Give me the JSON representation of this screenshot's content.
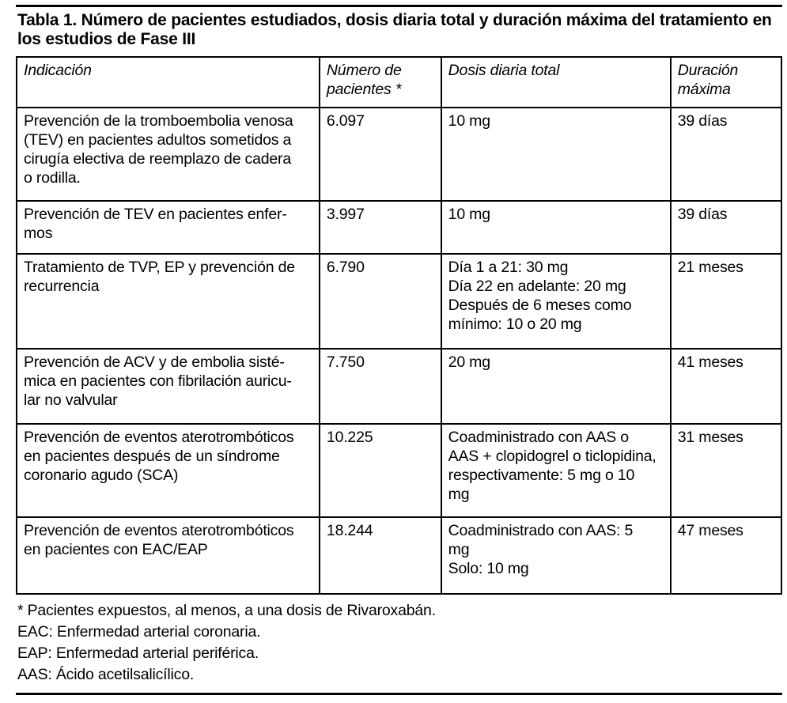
{
  "title": "Tabla 1. Número de pacientes estudiados, dosis diaria total y duración máxima del tratamiento en\nlos estudios de Fase III",
  "table": {
    "headers": {
      "indication": "Indicación",
      "patients": "Número de\npacientes *",
      "dose": "Dosis diaria total",
      "duration": "Duración\nmáxima"
    },
    "rows": [
      {
        "indication": "Prevención de la tromboembolia venosa\n(TEV) en pacientes adultos sometidos a\ncirugía electiva de reemplazo de cadera\no rodilla.",
        "patients": "6.097",
        "dose": "10 mg",
        "duration": "39 días"
      },
      {
        "indication": "Prevención de TEV en pacientes enfer-\nmos",
        "patients": "3.997",
        "dose": "10 mg",
        "duration": "39 días"
      },
      {
        "indication": "Tratamiento de TVP, EP y prevención de\nrecurrencia",
        "patients": "6.790",
        "dose": "Día 1 a 21: 30 mg\nDía 22 en adelante: 20 mg\nDespués de 6 meses como\nmínimo: 10 o 20 mg",
        "duration": "21 meses"
      },
      {
        "indication": "Prevención de ACV y de embolia sisté-\nmica en pacientes con fibrilación auricu-\nlar no valvular",
        "patients": "7.750",
        "dose": "20 mg",
        "duration": "41 meses"
      },
      {
        "indication": "Prevención de eventos aterotrombóticos\nen pacientes después de un síndrome\ncoronario agudo (SCA)",
        "patients": "10.225",
        "dose": "Coadministrado con AAS o\nAAS + clopidogrel o ticlopidina,\nrespectivamente: 5 mg o 10\nmg",
        "duration": "31 meses"
      },
      {
        "indication": "Prevención de eventos aterotrombóticos\nen pacientes con EAC/EAP",
        "patients": "18.244",
        "dose": "Coadministrado con AAS: 5\nmg\nSolo: 10 mg",
        "duration": "47 meses"
      }
    ]
  },
  "footnotes": [
    "* Pacientes expuestos, al menos, a una dosis de Rivaroxabán.",
    "EAC: Enfermedad arterial coronaria.",
    "EAP: Enfermedad arterial periférica.",
    "AAS: Ácido acetilsalicílico."
  ]
}
